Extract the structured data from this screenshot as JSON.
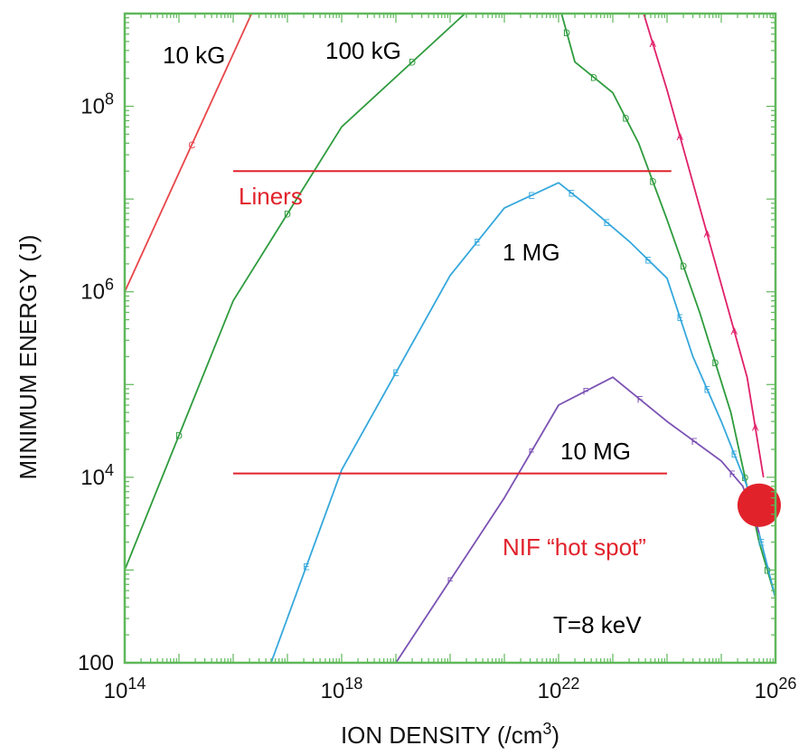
{
  "chart_data": {
    "type": "line",
    "title": "",
    "xlabel": "ION DENSITY (/cm",
    "xlabel_sup": "3",
    "xlabel_end": ")",
    "ylabel": "MINIMUM ENERGY (J)",
    "xscale": "log",
    "yscale": "log",
    "xlim": [
      100000000000000.0,
      1e+26
    ],
    "ylim": [
      100,
      1000000000.0
    ],
    "grid": false,
    "frame_color": "#5fb85a",
    "x_ticks": [
      {
        "value": 100000000000000.0,
        "base": "10",
        "exp": "14"
      },
      {
        "value": 1e+18,
        "base": "10",
        "exp": "18"
      },
      {
        "value": 1e+22,
        "base": "10",
        "exp": "22"
      },
      {
        "value": 1e+26,
        "base": "10",
        "exp": "26"
      }
    ],
    "y_ticks": [
      {
        "value": 100,
        "base": "100",
        "exp": ""
      },
      {
        "value": 10000.0,
        "base": "10",
        "exp": "4"
      },
      {
        "value": 1000000.0,
        "base": "10",
        "exp": "6"
      },
      {
        "value": 100000000.0,
        "base": "10",
        "exp": "8"
      }
    ],
    "series": [
      {
        "name": "10 kG",
        "color": "#e8454a",
        "marker": "C",
        "points": [
          [
            100000000000000.0,
            1000000.0
          ],
          [
            3e+16,
            1500000000.0
          ]
        ]
      },
      {
        "name": "100 kG",
        "color": "#2e9b3d",
        "marker": "D",
        "points": [
          [
            100000000000000.0,
            1000.0
          ],
          [
            1e+16,
            800000.0
          ],
          [
            1e+18,
            60000000.0
          ],
          [
            4e+20,
            1500000000.0
          ],
          [
            1e+22,
            1300000000.0
          ],
          [
            2e+22,
            300000000.0
          ],
          [
            1e+23,
            140000000.0
          ],
          [
            3e+23,
            40000000.0
          ],
          [
            1e+24,
            6000000.0
          ],
          [
            4e+24,
            600000.0
          ],
          [
            1.5e+25,
            50000.0
          ],
          [
            5e+25,
            2000.0
          ],
          [
            1e+26,
            500.0
          ]
        ]
      },
      {
        "name": "1 MG",
        "color": "#35a8dc",
        "marker": "E",
        "points": [
          [
            5e+16,
            100
          ],
          [
            1e+18,
            12000.0
          ],
          [
            1e+20,
            1500000.0
          ],
          [
            1e+21,
            8000000.0
          ],
          [
            1e+22,
            15000000.0
          ],
          [
            3e+22,
            9000000.0
          ],
          [
            2e+23,
            3500000.0
          ],
          [
            1e+24,
            1400000.0
          ],
          [
            3e+24,
            200000.0
          ],
          [
            1e+25,
            40000.0
          ],
          [
            3e+25,
            8000.0
          ],
          [
            1e+26,
            500.0
          ]
        ]
      },
      {
        "name": "10 MG",
        "color": "#7b52b3",
        "marker": "F",
        "points": [
          [
            1e+19,
            100
          ],
          [
            1e+21,
            6000.0
          ],
          [
            1e+22,
            60000.0
          ],
          [
            1e+23,
            120000.0
          ],
          [
            1e+24,
            40000.0
          ],
          [
            1e+25,
            15000.0
          ],
          [
            2.5e+25,
            8000.0
          ],
          [
            5e+25,
            2500.0
          ]
        ]
      },
      {
        "name": "",
        "color": "#e0206a",
        "marker": "A",
        "points": [
          [
            3e+23,
            1500000000.0
          ],
          [
            1e+24,
            150000000.0
          ],
          [
            3e+24,
            15000000.0
          ],
          [
            1e+25,
            1200000.0
          ],
          [
            3e+25,
            120000.0
          ],
          [
            6e+25,
            10000.0
          ]
        ]
      }
    ],
    "reference_lines": [
      {
        "label": "Liners",
        "color": "#e1222b",
        "x": [
          1e+16,
          1.2e+24
        ],
        "y": 20000000.0
      },
      {
        "label": "NIF “hot spot”",
        "color": "#e1222b",
        "x": [
          1e+16,
          1e+24
        ],
        "y": 11000.0
      }
    ],
    "point_marker": {
      "color": "#e1222b",
      "x": 5e+25,
      "y": 5000.0
    },
    "annotations": [
      {
        "id": "lbl-10kg",
        "text": "10 kG",
        "color": "#111111"
      },
      {
        "id": "lbl-100kg",
        "text": "100 kG",
        "color": "#111111"
      },
      {
        "id": "lbl-1mg",
        "text": "1 MG",
        "color": "#111111"
      },
      {
        "id": "lbl-10mg",
        "text": "10 MG",
        "color": "#111111"
      },
      {
        "id": "lbl-liners",
        "text": "Liners",
        "color": "#e1222b"
      },
      {
        "id": "lbl-nif",
        "text": "NIF “hot spot”",
        "color": "#e1222b"
      },
      {
        "id": "lbl-temp",
        "text": "T=8 keV",
        "color": "#111111"
      }
    ]
  }
}
